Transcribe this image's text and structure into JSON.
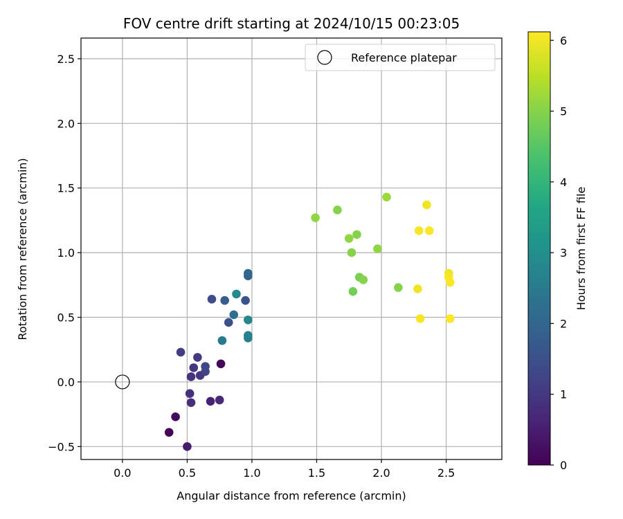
{
  "chart_data": {
    "type": "scatter",
    "title": "FOV centre drift starting at 2024/10/15 00:23:05",
    "xlabel": "Angular distance from reference (arcmin)",
    "ylabel": "Rotation from reference (arcmin)",
    "xlim": [
      -0.32,
      2.93
    ],
    "ylim": [
      -0.6,
      2.66
    ],
    "xticks": [
      0.0,
      0.5,
      1.0,
      1.5,
      2.0,
      2.5
    ],
    "xtick_labels": [
      "0.0",
      "0.5",
      "1.0",
      "1.5",
      "2.0",
      "2.5"
    ],
    "yticks": [
      -0.5,
      0.0,
      0.5,
      1.0,
      1.5,
      2.0,
      2.5
    ],
    "ytick_labels": [
      "−0.5",
      "0.0",
      "0.5",
      "1.0",
      "1.5",
      "2.0",
      "2.5"
    ],
    "grid": true,
    "legend": {
      "position": "upper right",
      "entries": [
        "Reference platepar"
      ]
    },
    "reference_point": {
      "x": 0.0,
      "y": 0.0,
      "marker": "open-circle"
    },
    "colorbar": {
      "label": "Hours from first FF file",
      "colormap": "viridis",
      "range": [
        0,
        6.12
      ],
      "ticks": [
        0,
        1,
        2,
        3,
        4,
        5,
        6
      ],
      "tick_labels": [
        "0",
        "1",
        "2",
        "3",
        "4",
        "5",
        "6"
      ]
    },
    "points": [
      {
        "x": 0.36,
        "y": -0.39,
        "c": 0.05
      },
      {
        "x": 0.41,
        "y": -0.27,
        "c": 0.15
      },
      {
        "x": 0.76,
        "y": 0.14,
        "c": 0.1
      },
      {
        "x": 0.5,
        "y": -0.5,
        "c": 0.5
      },
      {
        "x": 0.68,
        "y": -0.15,
        "c": 0.6
      },
      {
        "x": 0.75,
        "y": -0.14,
        "c": 0.7
      },
      {
        "x": 0.53,
        "y": -0.16,
        "c": 0.8
      },
      {
        "x": 0.52,
        "y": -0.09,
        "c": 0.85
      },
      {
        "x": 0.53,
        "y": 0.04,
        "c": 0.9
      },
      {
        "x": 0.6,
        "y": 0.05,
        "c": 0.95
      },
      {
        "x": 0.55,
        "y": 0.11,
        "c": 1.0
      },
      {
        "x": 0.58,
        "y": 0.19,
        "c": 1.05
      },
      {
        "x": 0.45,
        "y": 0.23,
        "c": 1.1
      },
      {
        "x": 0.64,
        "y": 0.08,
        "c": 1.2
      },
      {
        "x": 0.64,
        "y": 0.12,
        "c": 1.3
      },
      {
        "x": 0.69,
        "y": 0.64,
        "c": 1.4
      },
      {
        "x": 0.82,
        "y": 0.46,
        "c": 1.5
      },
      {
        "x": 0.95,
        "y": 0.63,
        "c": 1.6
      },
      {
        "x": 0.79,
        "y": 0.63,
        "c": 1.8
      },
      {
        "x": 0.97,
        "y": 0.82,
        "c": 1.9
      },
      {
        "x": 0.97,
        "y": 0.84,
        "c": 2.0
      },
      {
        "x": 0.86,
        "y": 0.52,
        "c": 2.2
      },
      {
        "x": 0.77,
        "y": 0.32,
        "c": 2.5
      },
      {
        "x": 0.97,
        "y": 0.34,
        "c": 2.6
      },
      {
        "x": 0.97,
        "y": 0.36,
        "c": 2.7
      },
      {
        "x": 0.97,
        "y": 0.48,
        "c": 2.8
      },
      {
        "x": 0.88,
        "y": 0.68,
        "c": 2.9
      },
      {
        "x": 1.49,
        "y": 1.27,
        "c": 5.1
      },
      {
        "x": 1.66,
        "y": 1.33,
        "c": 5.0
      },
      {
        "x": 1.75,
        "y": 1.11,
        "c": 5.1
      },
      {
        "x": 1.81,
        "y": 1.14,
        "c": 5.0
      },
      {
        "x": 1.77,
        "y": 1.0,
        "c": 5.0
      },
      {
        "x": 1.97,
        "y": 1.03,
        "c": 5.1
      },
      {
        "x": 2.04,
        "y": 1.43,
        "c": 5.2
      },
      {
        "x": 1.83,
        "y": 0.81,
        "c": 4.9
      },
      {
        "x": 1.86,
        "y": 0.79,
        "c": 5.0
      },
      {
        "x": 1.78,
        "y": 0.7,
        "c": 4.8
      },
      {
        "x": 2.13,
        "y": 0.73,
        "c": 5.0
      },
      {
        "x": 2.35,
        "y": 1.37,
        "c": 6.0
      },
      {
        "x": 2.29,
        "y": 1.17,
        "c": 6.05
      },
      {
        "x": 2.37,
        "y": 1.17,
        "c": 6.1
      },
      {
        "x": 2.52,
        "y": 0.84,
        "c": 6.0
      },
      {
        "x": 2.52,
        "y": 0.81,
        "c": 6.05
      },
      {
        "x": 2.53,
        "y": 0.77,
        "c": 6.1
      },
      {
        "x": 2.28,
        "y": 0.72,
        "c": 6.0
      },
      {
        "x": 2.3,
        "y": 0.49,
        "c": 6.05
      },
      {
        "x": 2.53,
        "y": 0.49,
        "c": 6.1
      }
    ]
  }
}
